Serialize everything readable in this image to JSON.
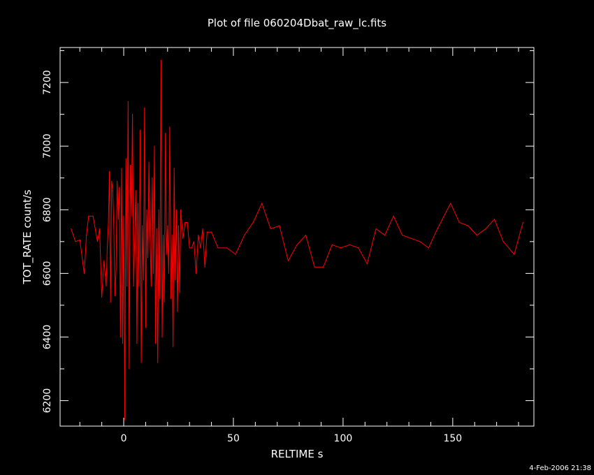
{
  "chart_data": {
    "type": "line",
    "title": "Plot of file 060204Dbat_raw_lc.fits",
    "xlabel": "RELTIME  s",
    "ylabel": "TOT_RATE  count/s",
    "timestamp": "4-Feb-2006 21:38",
    "xlim": [
      -29,
      187
    ],
    "ylim": [
      6120,
      7310
    ],
    "xticks": [
      0,
      50,
      100,
      150
    ],
    "yticks": [
      6200,
      6400,
      6600,
      6800,
      7000,
      7200
    ],
    "x_minor_step": 10,
    "y_minor_step": 100,
    "grid": false,
    "colors": {
      "background": "#000000",
      "axes": "#ffffff",
      "series": "#ff0000"
    },
    "series": [
      {
        "x": [
          -24,
          -22,
          -20,
          -18,
          -17,
          -16,
          -14,
          -12,
          -11,
          -10,
          -9,
          -8,
          -7.5,
          -7,
          -6.5,
          -6,
          -5.5,
          -5,
          -4.5,
          -4,
          -3.5,
          -3,
          -2.5,
          -2,
          -1.5,
          -1,
          -0.5,
          0,
          0.5,
          1,
          1.5,
          2,
          2.5,
          3,
          3.5,
          4,
          4.5,
          5,
          5.5,
          6,
          6.5,
          7,
          7.5,
          8,
          8.5,
          9,
          9.5,
          10,
          10.5,
          11,
          11.5,
          12,
          12.5,
          13,
          13.5,
          14,
          14.5,
          15,
          15.5,
          16,
          16.5,
          17,
          17.5,
          18,
          18.5,
          19,
          19.5,
          20,
          20.5,
          21,
          21.5,
          22,
          22.5,
          23,
          23.5,
          24,
          24.5,
          25,
          25.5,
          26,
          27,
          28,
          29,
          30,
          31,
          32,
          33,
          34,
          35,
          36,
          37,
          38,
          40,
          43,
          47,
          51,
          55,
          59,
          63,
          67,
          71,
          75,
          79,
          83,
          87,
          91,
          95,
          99,
          103,
          107,
          111,
          115,
          119,
          123,
          127,
          131,
          135,
          139,
          143,
          149,
          153,
          157,
          161,
          165,
          169,
          173,
          178,
          182
        ],
        "y": [
          6740,
          6700,
          6705,
          6600,
          6720,
          6780,
          6780,
          6700,
          6740,
          6525,
          6640,
          6560,
          6680,
          6760,
          6920,
          6510,
          6890,
          6860,
          6740,
          6530,
          6610,
          6890,
          6770,
          6870,
          6400,
          6930,
          6380,
          6780,
          6140,
          6960,
          6560,
          7140,
          6300,
          6940,
          6780,
          7100,
          6560,
          6700,
          6860,
          6380,
          6820,
          6560,
          7050,
          6320,
          6750,
          6580,
          7120,
          6430,
          6800,
          6650,
          6950,
          6720,
          6560,
          6900,
          6600,
          7000,
          6380,
          6740,
          6320,
          6800,
          6520,
          7270,
          6400,
          6720,
          6510,
          7040,
          6660,
          6750,
          6600,
          7060,
          6520,
          6720,
          6370,
          6930,
          6580,
          6800,
          6480,
          6750,
          6540,
          6800,
          6710,
          6760,
          6760,
          6680,
          6680,
          6700,
          6600,
          6720,
          6680,
          6740,
          6620,
          6730,
          6730,
          6680,
          6680,
          6660,
          6720,
          6760,
          6820,
          6740,
          6750,
          6640,
          6690,
          6720,
          6620,
          6620,
          6690,
          6680,
          6690,
          6680,
          6630,
          6740,
          6720,
          6780,
          6720,
          6710,
          6700,
          6680,
          6740,
          6820,
          6760,
          6750,
          6720,
          6740,
          6770,
          6700,
          6660,
          6760
        ]
      }
    ]
  }
}
